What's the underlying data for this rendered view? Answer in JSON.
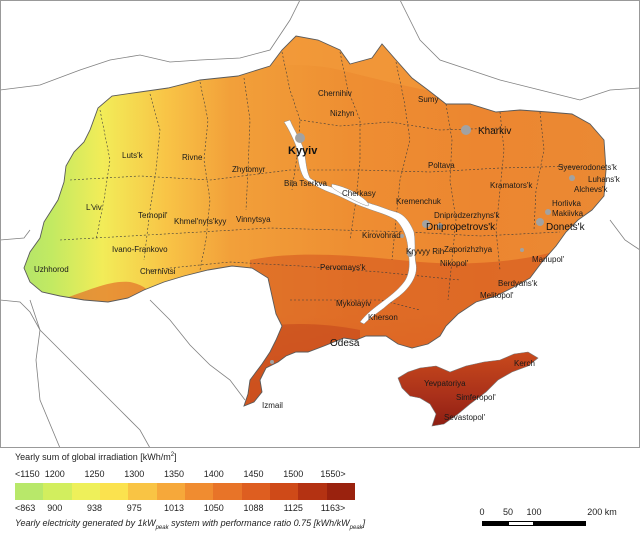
{
  "cities": {
    "kyiv": "Kyyiv",
    "chernihiv": "Chernihiv",
    "sumy": "Sumy",
    "kharkiv": "Kharkiv",
    "nizhyn": "Nizhyn",
    "lutsk": "Luts'k",
    "rivne": "Rivne",
    "zhytomyr": "Zhytomyr",
    "poltava": "Poltava",
    "bila_tserkva": "Bila Tserkva",
    "cherkasy": "Cherkasy",
    "kremenchuk": "Kremenchuk",
    "kramatorsk": "Kramators'k",
    "severodonetsk": "Syeverodonets'k",
    "luhansk": "Luhans'k",
    "alchevsk": "Alchevs'k",
    "horlivka": "Horlivka",
    "makiivka": "Makiivka",
    "donetsk": "Donets'k",
    "lviv": "L'viv",
    "ternopil": "Ternopil'",
    "khmelnytskyi": "Khmel'nyts'kyy",
    "vinnytsya": "Vinnytsya",
    "dniprodzerzhynsk": "Dniprodzerzhyns'k",
    "dnipropetrovsk": "Dnipropetrovs'k",
    "kirovohrad": "Kirovohrad",
    "ivano_frankovo": "Ivano-Frankovo",
    "zaporizhzhya": "Zaporizhzhya",
    "kryvyy_rih": "Kryvyy Rih",
    "nikopol": "Nikopol'",
    "uzhhorod": "Uzhhorod",
    "chernivtsi": "Chernivtsi",
    "pervomaysk": "Pervomays'k",
    "mariupol": "Mariupol'",
    "berdyansk": "Berdyans'k",
    "melitopol": "Melitopol'",
    "mykolayiv": "Mykolayiv",
    "kherson": "Kherson",
    "odesa": "Odesa",
    "kerch": "Kerch",
    "yevpatoriya": "Yevpatoriya",
    "izmail": "Izmail",
    "simferopol": "Simferopol'",
    "sevastopol": "Sevastopol'"
  },
  "legend": {
    "title_text": "Yearly sum of global irradiation [kWh/m",
    "title_sup": "2",
    "title_end": "]",
    "irradiation_ticks": [
      "<1150",
      "1200",
      "1250",
      "1300",
      "1350",
      "1400",
      "1450",
      "1500",
      "1550>"
    ],
    "pv_ticks": [
      "<863",
      "900",
      "938",
      "975",
      "1013",
      "1050",
      "1088",
      "1125",
      "1163>"
    ],
    "ramp_colors": [
      "#b8e86a",
      "#d2ee5e",
      "#eef05a",
      "#fbe24e",
      "#f9c444",
      "#f6a83a",
      "#f08c30",
      "#e87428",
      "#de5e20",
      "#cf4a18",
      "#b43212",
      "#9a220e"
    ],
    "caption_pre": "Yearly electricity generated by 1kW",
    "caption_sub": "peak",
    "caption_mid": " system with performance ratio 0.75 [kWh/kW",
    "caption_sub2": "peak",
    "caption_end": "]"
  },
  "scalebar": {
    "labels": [
      "0",
      "50",
      "100",
      "200 km"
    ]
  },
  "colors": {
    "sea": "#ffffff",
    "neighbor_land": "#f3f3f3",
    "border": "#666666",
    "oblast_border": "#444444",
    "water": "#ffffff",
    "urban": "#a0a0a0"
  }
}
